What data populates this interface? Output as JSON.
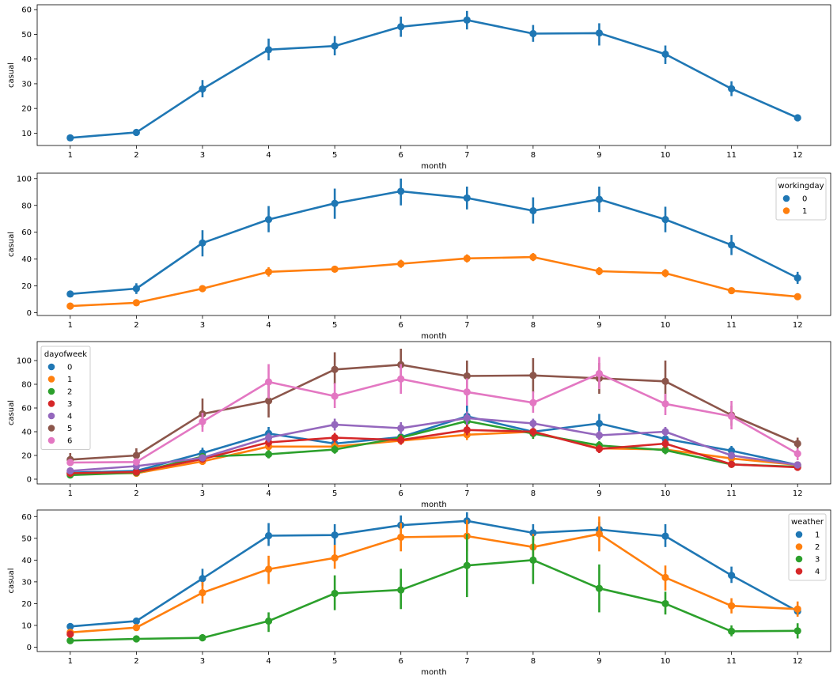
{
  "chart_data": [
    {
      "type": "line",
      "xlabel": "month",
      "ylabel": "casual",
      "categories": [
        "1",
        "2",
        "3",
        "4",
        "5",
        "6",
        "7",
        "8",
        "9",
        "10",
        "11",
        "12"
      ],
      "ylim": [
        5,
        62
      ],
      "yticks": [
        10,
        20,
        30,
        40,
        50,
        60
      ],
      "legend": null,
      "series": [
        {
          "color": "#1f77b4",
          "values": [
            8.1,
            10.3,
            27.9,
            43.8,
            45.3,
            53.1,
            55.8,
            50.3,
            50.5,
            42.0,
            28.0,
            16.2
          ],
          "err_low": [
            7.4,
            9.3,
            24.5,
            39.5,
            41.5,
            49.0,
            52.0,
            47.0,
            45.5,
            38.0,
            25.0,
            14.8
          ],
          "err_high": [
            8.8,
            11.5,
            31.5,
            48.3,
            49.3,
            57.2,
            59.5,
            53.8,
            54.5,
            45.5,
            31.0,
            17.5
          ]
        }
      ]
    },
    {
      "type": "line",
      "xlabel": "month",
      "ylabel": "casual",
      "categories": [
        "1",
        "2",
        "3",
        "4",
        "5",
        "6",
        "7",
        "8",
        "9",
        "10",
        "11",
        "12"
      ],
      "ylim": [
        -2,
        104
      ],
      "yticks": [
        0,
        20,
        40,
        60,
        80,
        100
      ],
      "legend": {
        "title": "workingday",
        "placement": "upper right"
      },
      "series": [
        {
          "name": "0",
          "color": "#1f77b4",
          "values": [
            14.0,
            18.0,
            52.0,
            69.5,
            81.5,
            90.5,
            85.5,
            76.0,
            84.5,
            69.5,
            50.5,
            26.0
          ],
          "err_low": [
            11.5,
            14.0,
            42.0,
            60.0,
            70.0,
            80.0,
            77.0,
            66.5,
            75.0,
            60.0,
            43.0,
            21.5
          ],
          "err_high": [
            16.5,
            22.0,
            61.5,
            79.5,
            92.5,
            100.0,
            94.0,
            86.0,
            94.0,
            79.0,
            58.0,
            30.5
          ]
        },
        {
          "name": "1",
          "color": "#ff7f0e",
          "values": [
            5.0,
            7.5,
            18.0,
            30.5,
            32.5,
            36.5,
            40.5,
            41.5,
            31.0,
            29.5,
            16.5,
            12.0
          ],
          "err_low": [
            4.0,
            6.0,
            15.5,
            27.0,
            30.0,
            33.5,
            37.5,
            38.5,
            28.0,
            26.5,
            14.5,
            10.5
          ],
          "err_high": [
            6.0,
            9.0,
            20.5,
            34.0,
            35.0,
            39.5,
            43.5,
            44.5,
            34.0,
            32.5,
            18.5,
            13.5
          ]
        }
      ]
    },
    {
      "type": "line",
      "xlabel": "month",
      "ylabel": "casual",
      "categories": [
        "1",
        "2",
        "3",
        "4",
        "5",
        "6",
        "7",
        "8",
        "9",
        "10",
        "11",
        "12"
      ],
      "ylim": [
        -4,
        116
      ],
      "yticks": [
        0,
        20,
        40,
        60,
        80,
        100
      ],
      "legend": {
        "title": "dayofweek",
        "placement": "upper left"
      },
      "series": [
        {
          "name": "0",
          "color": "#1f77b4",
          "values": [
            5.5,
            7.0,
            22.0,
            38.5,
            30.0,
            35.5,
            53.0,
            40.0,
            47.0,
            34.0,
            24.0,
            12.0
          ],
          "err_low": [
            4.0,
            5.0,
            17.5,
            33.0,
            26.0,
            31.0,
            44.0,
            36.0,
            40.0,
            29.0,
            20.0,
            10.0
          ],
          "err_high": [
            7.0,
            9.0,
            26.5,
            44.0,
            34.0,
            40.0,
            62.0,
            44.0,
            55.0,
            39.0,
            28.0,
            14.0
          ]
        },
        {
          "name": "1",
          "color": "#ff7f0e",
          "values": [
            5.0,
            5.0,
            15.0,
            27.5,
            27.5,
            32.5,
            37.5,
            40.0,
            26.0,
            25.0,
            17.5,
            12.0
          ],
          "err_low": [
            4.0,
            4.0,
            12.0,
            24.0,
            24.0,
            29.0,
            33.0,
            36.5,
            23.0,
            22.0,
            15.0,
            10.5
          ],
          "err_high": [
            6.0,
            6.0,
            18.0,
            31.0,
            31.0,
            36.0,
            42.0,
            43.5,
            29.0,
            28.0,
            20.0,
            13.5
          ]
        },
        {
          "name": "2",
          "color": "#2ca02c",
          "values": [
            3.5,
            5.5,
            19.0,
            21.0,
            25.0,
            35.0,
            49.0,
            38.5,
            28.5,
            24.5,
            12.5,
            10.5
          ],
          "err_low": [
            2.5,
            4.0,
            16.0,
            17.5,
            21.5,
            31.0,
            44.0,
            34.0,
            25.0,
            21.0,
            10.5,
            9.0
          ],
          "err_high": [
            4.5,
            7.0,
            22.0,
            24.5,
            28.5,
            39.0,
            54.0,
            43.0,
            32.0,
            28.0,
            14.5,
            12.0
          ]
        },
        {
          "name": "3",
          "color": "#d62728",
          "values": [
            5.0,
            6.0,
            17.0,
            31.0,
            35.0,
            33.0,
            41.5,
            40.0,
            25.5,
            30.0,
            12.5,
            10.0
          ],
          "err_low": [
            4.0,
            4.5,
            14.0,
            27.0,
            31.0,
            29.0,
            37.0,
            36.0,
            22.0,
            26.0,
            10.5,
            8.5
          ],
          "err_high": [
            6.0,
            7.5,
            20.0,
            35.0,
            39.0,
            37.0,
            46.0,
            44.0,
            29.0,
            34.0,
            14.5,
            11.5
          ]
        },
        {
          "name": "4",
          "color": "#9467bd",
          "values": [
            7.0,
            11.0,
            18.0,
            35.0,
            46.0,
            43.0,
            51.5,
            47.0,
            37.0,
            40.0,
            20.0,
            12.0
          ],
          "err_low": [
            5.5,
            9.0,
            15.0,
            31.0,
            41.0,
            38.0,
            46.0,
            43.0,
            33.0,
            36.0,
            17.0,
            10.5
          ],
          "err_high": [
            8.5,
            13.0,
            21.0,
            39.0,
            51.0,
            48.0,
            57.0,
            51.0,
            41.0,
            44.0,
            23.0,
            13.5
          ]
        },
        {
          "name": "5",
          "color": "#8c564b",
          "values": [
            16.5,
            20.0,
            55.0,
            66.0,
            92.5,
            96.5,
            87.0,
            87.5,
            85.0,
            82.5,
            54.0,
            30.0
          ],
          "err_low": [
            11.0,
            14.0,
            44.0,
            52.0,
            80.0,
            86.0,
            76.0,
            73.0,
            72.0,
            66.0,
            45.0,
            25.0
          ],
          "err_high": [
            22.0,
            26.0,
            68.0,
            80.0,
            107.0,
            110.0,
            100.0,
            102.0,
            98.0,
            100.0,
            62.0,
            35.0
          ]
        },
        {
          "name": "6",
          "color": "#e377c2",
          "values": [
            14.0,
            14.5,
            48.5,
            82.0,
            70.0,
            84.5,
            73.5,
            64.5,
            89.0,
            63.5,
            53.0,
            21.5
          ],
          "err_low": [
            11.0,
            11.5,
            40.0,
            68.0,
            60.0,
            72.0,
            62.0,
            56.0,
            76.0,
            54.0,
            42.0,
            16.0
          ],
          "err_high": [
            17.0,
            17.5,
            56.0,
            97.0,
            81.0,
            97.0,
            85.0,
            74.0,
            103.0,
            72.0,
            66.0,
            26.0
          ]
        }
      ]
    },
    {
      "type": "line",
      "xlabel": "month",
      "ylabel": "casual",
      "categories": [
        "1",
        "2",
        "3",
        "4",
        "5",
        "6",
        "7",
        "8",
        "9",
        "10",
        "11",
        "12"
      ],
      "ylim": [
        -2,
        63
      ],
      "yticks": [
        0,
        10,
        20,
        30,
        40,
        50,
        60
      ],
      "legend": {
        "title": "weather",
        "placement": "upper right"
      },
      "series": [
        {
          "name": "1",
          "color": "#1f77b4",
          "values": [
            9.5,
            12.0,
            31.5,
            51.2,
            51.5,
            56.0,
            58.0,
            52.5,
            54.0,
            51.0,
            33.0,
            16.5
          ],
          "err_low": [
            8.5,
            10.5,
            28.0,
            46.5,
            47.0,
            52.0,
            54.5,
            49.0,
            50.5,
            46.0,
            29.5,
            14.5
          ],
          "err_high": [
            10.5,
            13.5,
            36.0,
            57.0,
            56.5,
            60.5,
            62.0,
            56.5,
            57.5,
            56.5,
            37.0,
            18.5
          ]
        },
        {
          "name": "2",
          "color": "#ff7f0e",
          "values": [
            6.8,
            9.0,
            25.0,
            35.8,
            41.0,
            50.5,
            51.0,
            46.0,
            52.0,
            32.0,
            19.0,
            17.5
          ],
          "err_low": [
            5.8,
            7.5,
            20.0,
            29.0,
            36.0,
            44.0,
            44.0,
            41.0,
            44.0,
            26.0,
            15.5,
            14.0
          ],
          "err_high": [
            7.8,
            10.5,
            30.0,
            42.0,
            47.0,
            57.0,
            58.5,
            52.0,
            60.0,
            37.5,
            22.5,
            21.0
          ]
        },
        {
          "name": "3",
          "color": "#2ca02c",
          "values": [
            3.0,
            3.8,
            4.3,
            12.0,
            24.7,
            26.3,
            37.5,
            40.0,
            27.0,
            20.0,
            7.3,
            7.5
          ],
          "err_low": [
            2.0,
            2.8,
            2.8,
            7.0,
            17.0,
            17.5,
            23.0,
            29.0,
            16.0,
            15.0,
            5.0,
            4.0
          ],
          "err_high": [
            4.0,
            4.8,
            6.0,
            16.0,
            33.0,
            36.0,
            52.0,
            51.0,
            38.0,
            25.5,
            10.0,
            11.0
          ]
        },
        {
          "name": "4",
          "color": "#d62728",
          "values": [
            6.0,
            null,
            null,
            null,
            null,
            null,
            null,
            null,
            null,
            null,
            null,
            null
          ],
          "err_low": [
            6.0,
            null,
            null,
            null,
            null,
            null,
            null,
            null,
            null,
            null,
            null,
            null
          ],
          "err_high": [
            6.0,
            null,
            null,
            null,
            null,
            null,
            null,
            null,
            null,
            null,
            null,
            null
          ]
        }
      ]
    }
  ]
}
